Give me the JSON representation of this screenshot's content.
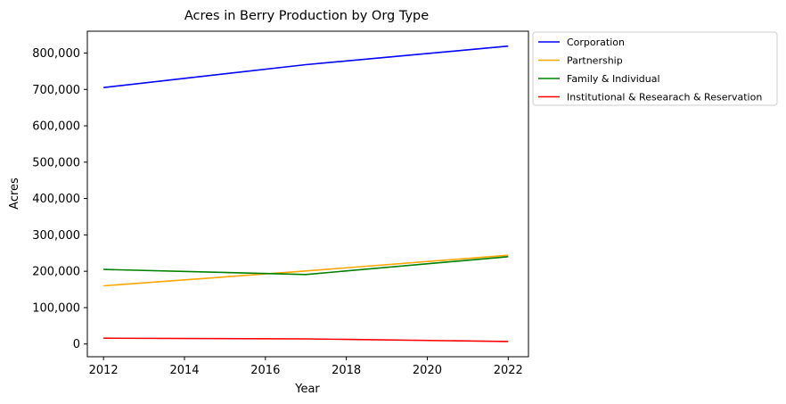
{
  "chart_data": {
    "type": "line",
    "title": "Acres in Berry Production by Org Type",
    "xlabel": "Year",
    "ylabel": "Acres",
    "xlim": [
      2011.6,
      2022.5
    ],
    "ylim": [
      -35000,
      860000
    ],
    "x_ticks": [
      2012,
      2014,
      2016,
      2018,
      2020,
      2022
    ],
    "y_ticks": [
      0,
      100000,
      200000,
      300000,
      400000,
      500000,
      600000,
      700000,
      800000
    ],
    "y_tick_labels": [
      "0",
      "100,000",
      "200,000",
      "300,000",
      "400,000",
      "500,000",
      "600,000",
      "700,000",
      "800,000"
    ],
    "grid": false,
    "legend_position": "outside-top-right",
    "x": [
      2012,
      2017,
      2022
    ],
    "series": [
      {
        "name": "Corporation",
        "color": "#0000ff",
        "values": [
          705000,
          768000,
          819000
        ]
      },
      {
        "name": "Partnership",
        "color": "#ffa500",
        "values": [
          160000,
          201000,
          244000
        ]
      },
      {
        "name": "Family & Individual",
        "color": "#008000",
        "values": [
          205000,
          191000,
          240000
        ]
      },
      {
        "name": "Institutional & Researach & Reservation",
        "color": "#ff0000",
        "values": [
          16000,
          14000,
          7000
        ]
      }
    ]
  }
}
